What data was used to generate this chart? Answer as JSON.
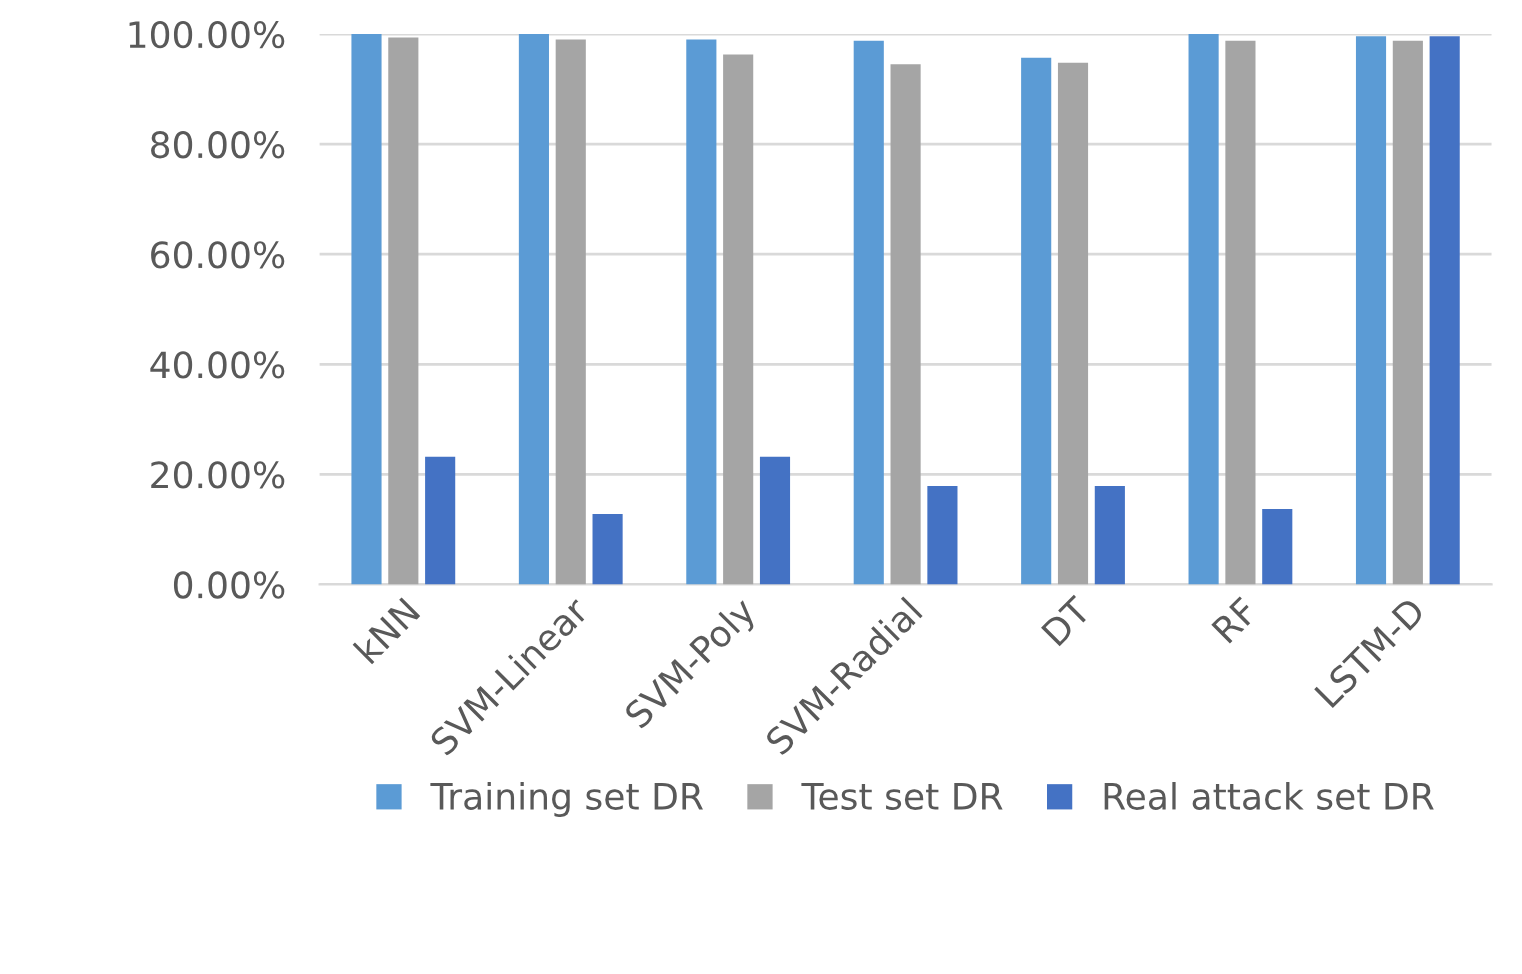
{
  "chart_data": {
    "type": "bar",
    "categories": [
      "kNN",
      "SVM-Linear",
      "SVM-Poly",
      "SVM-Radial",
      "DT",
      "RF",
      "LSTM-D"
    ],
    "series": [
      {
        "name": "Training set DR",
        "color": "#5b9bd5",
        "values": [
          100,
          100,
          99.0,
          98.8,
          95.7,
          100,
          99.6
        ]
      },
      {
        "name": "Test set DR",
        "color": "#a5a5a5",
        "values": [
          99.4,
          99.0,
          96.3,
          94.5,
          94.8,
          98.8,
          98.8
        ]
      },
      {
        "name": "Real attack set DR",
        "color": "#4472c4",
        "values": [
          23.2,
          12.8,
          23.2,
          17.9,
          17.9,
          13.7,
          99.6
        ]
      }
    ],
    "ylim": [
      0,
      100
    ],
    "yticks": [
      {
        "value": 0,
        "label": "0.00%"
      },
      {
        "value": 20,
        "label": "20.00%"
      },
      {
        "value": 40,
        "label": "40.00%"
      },
      {
        "value": 60,
        "label": "60.00%"
      },
      {
        "value": 80,
        "label": "80.00%"
      },
      {
        "value": 100,
        "label": "100.00%"
      }
    ],
    "grid": "y",
    "legend": "bottom"
  }
}
